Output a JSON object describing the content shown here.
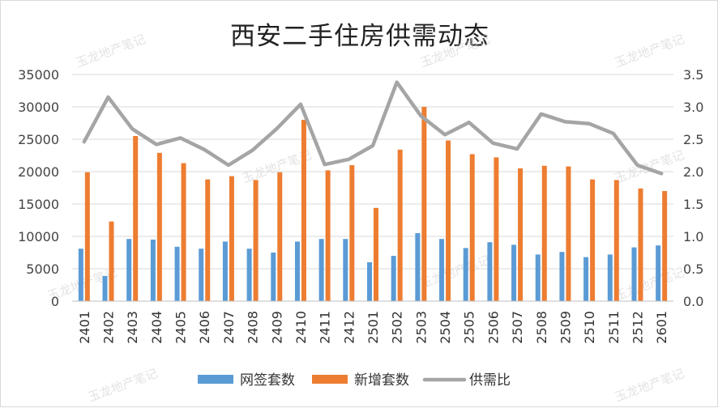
{
  "chart_data": {
    "type": "bar",
    "title": "西安二手住房供需动态",
    "categories": [
      "2401",
      "2402",
      "2403",
      "2404",
      "2405",
      "2406",
      "2407",
      "2408",
      "2409",
      "2410",
      "2411",
      "2412",
      "2501",
      "2502",
      "2503",
      "2504",
      "2505",
      "2506",
      "2507",
      "2508",
      "2509",
      "2510",
      "2511",
      "2512",
      "2601"
    ],
    "series": [
      {
        "name": "网签套数",
        "type": "bar",
        "axis": "left",
        "color": "#5b9bd5",
        "values": [
          8100,
          3900,
          9600,
          9500,
          8400,
          8100,
          9200,
          8100,
          7500,
          9200,
          9600,
          9600,
          6000,
          7000,
          10500,
          9600,
          8200,
          9100,
          8700,
          7200,
          7600,
          6800,
          7200,
          8300,
          8600
        ]
      },
      {
        "name": "新增套数",
        "type": "bar",
        "axis": "left",
        "color": "#ed7d31",
        "values": [
          19900,
          12300,
          25500,
          22900,
          21300,
          18800,
          19300,
          18700,
          19900,
          28000,
          20200,
          21000,
          14400,
          23400,
          30000,
          24800,
          22700,
          22200,
          20500,
          20900,
          20800,
          18800,
          18700,
          17400,
          17000
        ]
      },
      {
        "name": "供需比",
        "type": "line",
        "axis": "right",
        "color": "#a5a5a5",
        "values": [
          2.46,
          3.15,
          2.66,
          2.42,
          2.52,
          2.34,
          2.1,
          2.33,
          2.66,
          3.04,
          2.11,
          2.19,
          2.4,
          3.38,
          2.86,
          2.57,
          2.76,
          2.44,
          2.35,
          2.89,
          2.77,
          2.74,
          2.59,
          2.1,
          1.97
        ]
      }
    ],
    "ylim_left": [
      0,
      35000
    ],
    "yticks_left": [
      "0",
      "5000",
      "10000",
      "15000",
      "20000",
      "25000",
      "30000",
      "35000"
    ],
    "ylim_right": [
      0,
      3.5
    ],
    "yticks_right": [
      "0.0",
      "0.5",
      "1.0",
      "1.5",
      "2.0",
      "2.5",
      "3.0",
      "3.5"
    ],
    "legend_position": "bottom",
    "gridlines": true
  },
  "watermark": "玉龙地产笔记",
  "colors": {
    "grid": "#d9d9d9",
    "axis_text": "#444444"
  }
}
